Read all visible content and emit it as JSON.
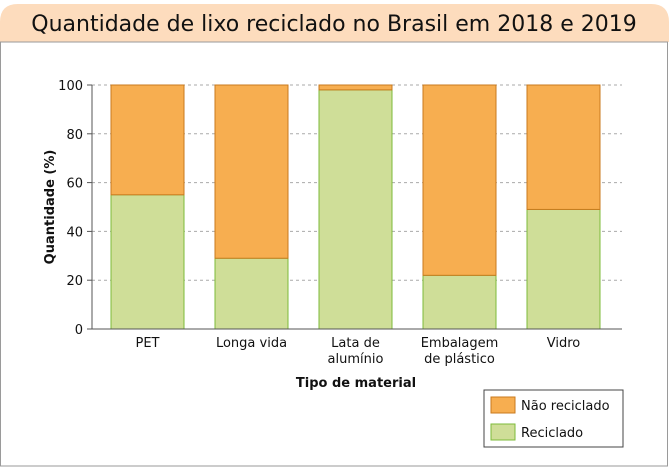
{
  "chart_data": {
    "type": "bar",
    "stacked": true,
    "title": "Quantidade de lixo reciclado no Brasil em 2018 e 2019",
    "xlabel": "Tipo de material",
    "ylabel": "Quantidade (%)",
    "ylim": [
      0,
      100
    ],
    "yticks": [
      "0",
      "20",
      "40",
      "60",
      "80",
      "100"
    ],
    "grid": true,
    "legend_placement": "bottom-right",
    "categories": [
      [
        "PET"
      ],
      [
        "Longa vida"
      ],
      [
        "Lata de",
        "alumínio"
      ],
      [
        "Embalagem",
        "de plástico"
      ],
      [
        "Vidro"
      ]
    ],
    "series": [
      {
        "name": "Reciclado",
        "values": [
          55,
          29,
          98,
          22,
          49
        ],
        "color": "#CFDE98",
        "stroke": "#7DBB3A"
      },
      {
        "name": "Não reciclado",
        "values": [
          45,
          71,
          2,
          78,
          51
        ],
        "color": "#F7AE50",
        "stroke": "#C97A1E"
      }
    ],
    "legend_order": [
      "Não reciclado",
      "Reciclado"
    ],
    "title_background": "#FDDCBD"
  }
}
